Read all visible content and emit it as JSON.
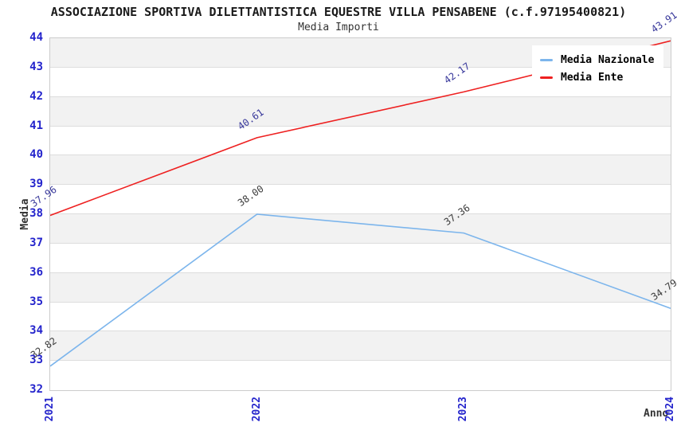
{
  "header": {
    "title": "ASSOCIAZIONE SPORTIVA DILETTANTISTICA EQUESTRE VILLA PENSABENE (c.f.97195400821)",
    "subtitle": "Media Importi"
  },
  "legend": {
    "items": [
      {
        "label": "Media Nazionale",
        "color": "#7cb5ec"
      },
      {
        "label": "Media Ente",
        "color": "#ee2020"
      }
    ]
  },
  "chart_data": {
    "type": "line",
    "title": "ASSOCIAZIONE SPORTIVA DILETTANTISTICA EQUESTRE VILLA PENSABENE (c.f.97195400821)",
    "subtitle": "Media Importi",
    "x": [
      2021,
      2022,
      2023,
      2024
    ],
    "series": [
      {
        "name": "Media Nazionale",
        "color": "#7cb5ec",
        "label_color": "#3b3b3b",
        "values": [
          32.82,
          38.0,
          37.36,
          34.79
        ]
      },
      {
        "name": "Media Ente",
        "color": "#ee2020",
        "label_color": "#38389b",
        "values": [
          37.96,
          40.61,
          42.17,
          43.91
        ]
      }
    ],
    "xlabel": "Anno",
    "ylabel": "Media",
    "ylim": [
      32,
      44
    ],
    "ytick_step": 1,
    "tick_color": "#2424cc",
    "band_colors": [
      "#f2f2f2",
      "#ffffff"
    ],
    "grid": true,
    "legend_position": "top-right",
    "data_labels_decimals": 2
  }
}
